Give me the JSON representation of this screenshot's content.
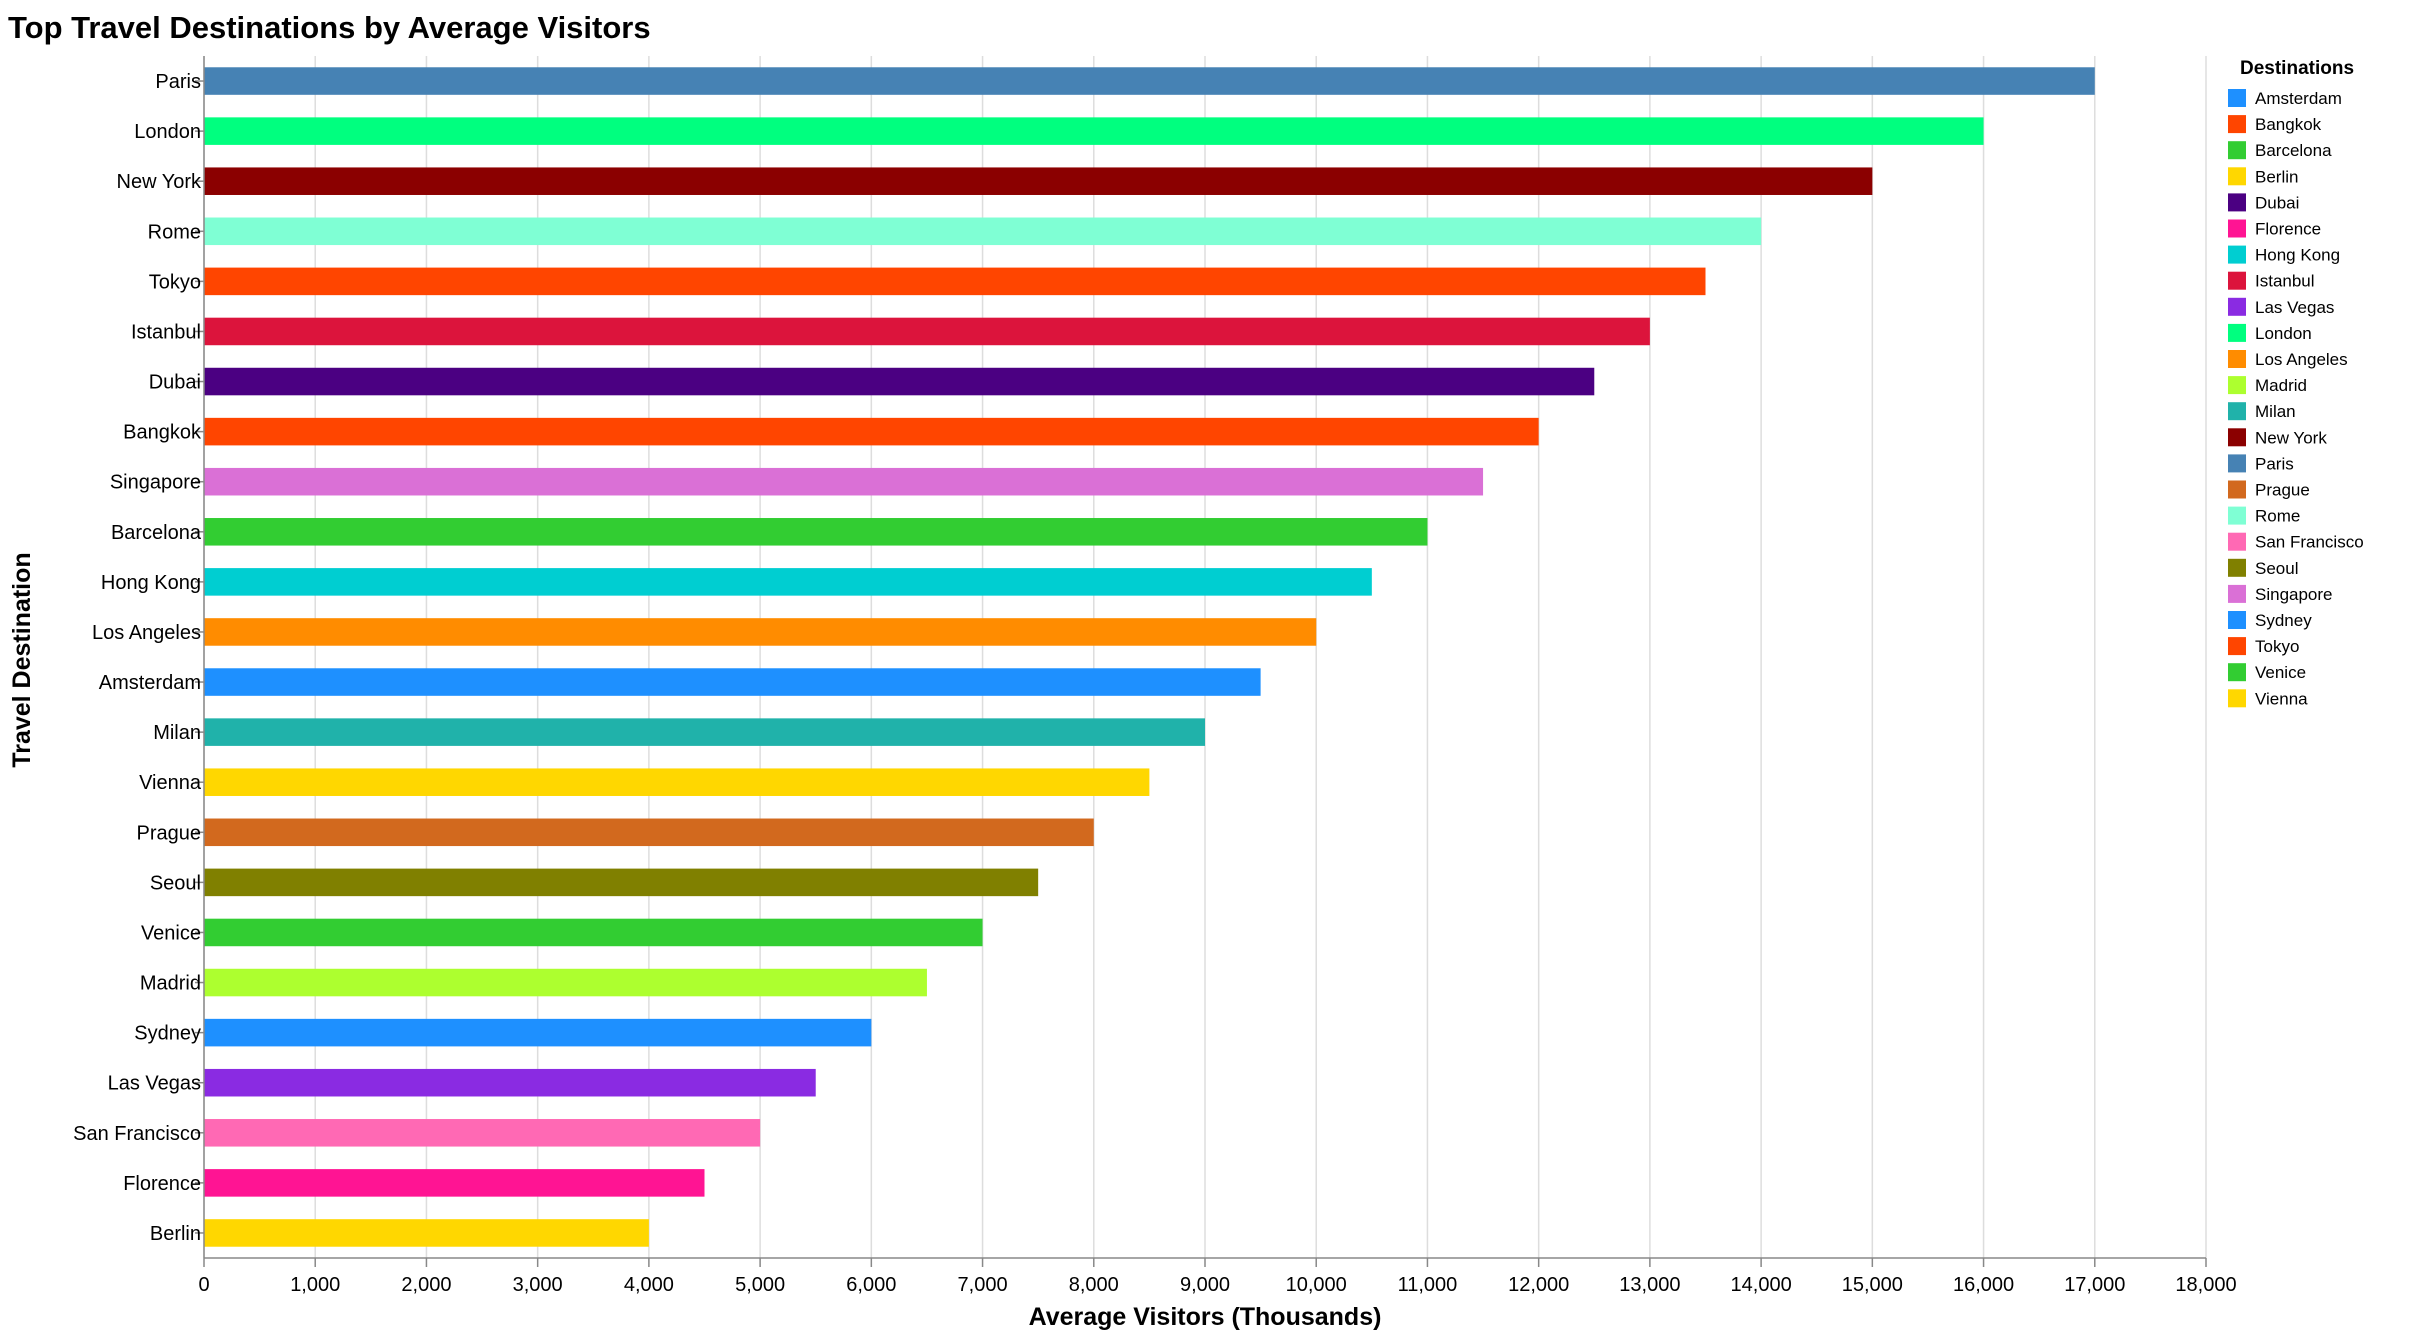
{
  "chart_data": {
    "type": "bar",
    "orientation": "horizontal",
    "title": "Top Travel Destinations by Average Visitors",
    "xlabel": "Average Visitors (Thousands)",
    "ylabel": "Travel Destination",
    "xlim": [
      0,
      18000
    ],
    "x_ticks": [
      0,
      1000,
      2000,
      3000,
      4000,
      5000,
      6000,
      7000,
      8000,
      9000,
      10000,
      11000,
      12000,
      13000,
      14000,
      15000,
      16000,
      17000,
      18000
    ],
    "x_tick_labels": [
      "0",
      "1,000",
      "2,000",
      "3,000",
      "4,000",
      "5,000",
      "6,000",
      "7,000",
      "8,000",
      "9,000",
      "10,000",
      "11,000",
      "12,000",
      "13,000",
      "14,000",
      "15,000",
      "16,000",
      "17,000",
      "18,000"
    ],
    "grid": true,
    "legend_position": "right",
    "categories": [
      "Paris",
      "London",
      "New York",
      "Rome",
      "Tokyo",
      "Istanbul",
      "Dubai",
      "Bangkok",
      "Singapore",
      "Barcelona",
      "Hong Kong",
      "Los Angeles",
      "Amsterdam",
      "Milan",
      "Vienna",
      "Prague",
      "Seoul",
      "Venice",
      "Madrid",
      "Sydney",
      "Las Vegas",
      "San Francisco",
      "Florence",
      "Berlin"
    ],
    "values": [
      17000,
      16000,
      15000,
      14000,
      13500,
      13000,
      12500,
      12000,
      11500,
      11000,
      10500,
      10000,
      9500,
      9000,
      8500,
      8000,
      7500,
      7000,
      6500,
      6000,
      5500,
      5000,
      4500,
      4000
    ],
    "colors": [
      "#4682B4",
      "#00FF7F",
      "#8B0000",
      "#7FFFD4",
      "#FF4500",
      "#DC143C",
      "#4B0082",
      "#FF4500",
      "#DA70D6",
      "#32CD32",
      "#00CED1",
      "#FF8C00",
      "#1E90FF",
      "#20B2AA",
      "#FFD700",
      "#D2691E",
      "#808000",
      "#32CD32",
      "#ADFF2F",
      "#1E90FF",
      "#8A2BE2",
      "#FF69B4",
      "#FF1493",
      "#FFD700"
    ],
    "legend": {
      "title": "Destinations",
      "entries": [
        {
          "label": "Amsterdam",
          "color": "#1E90FF"
        },
        {
          "label": "Bangkok",
          "color": "#FF4500"
        },
        {
          "label": "Barcelona",
          "color": "#32CD32"
        },
        {
          "label": "Berlin",
          "color": "#FFD700"
        },
        {
          "label": "Dubai",
          "color": "#4B0082"
        },
        {
          "label": "Florence",
          "color": "#FF1493"
        },
        {
          "label": "Hong Kong",
          "color": "#00CED1"
        },
        {
          "label": "Istanbul",
          "color": "#DC143C"
        },
        {
          "label": "Las Vegas",
          "color": "#8A2BE2"
        },
        {
          "label": "London",
          "color": "#00FF7F"
        },
        {
          "label": "Los Angeles",
          "color": "#FF8C00"
        },
        {
          "label": "Madrid",
          "color": "#ADFF2F"
        },
        {
          "label": "Milan",
          "color": "#20B2AA"
        },
        {
          "label": "New York",
          "color": "#8B0000"
        },
        {
          "label": "Paris",
          "color": "#4682B4"
        },
        {
          "label": "Prague",
          "color": "#D2691E"
        },
        {
          "label": "Rome",
          "color": "#7FFFD4"
        },
        {
          "label": "San Francisco",
          "color": "#FF69B4"
        },
        {
          "label": "Seoul",
          "color": "#808000"
        },
        {
          "label": "Singapore",
          "color": "#DA70D6"
        },
        {
          "label": "Sydney",
          "color": "#1E90FF"
        },
        {
          "label": "Tokyo",
          "color": "#FF4500"
        },
        {
          "label": "Venice",
          "color": "#32CD32"
        },
        {
          "label": "Vienna",
          "color": "#FFD700"
        }
      ]
    }
  }
}
